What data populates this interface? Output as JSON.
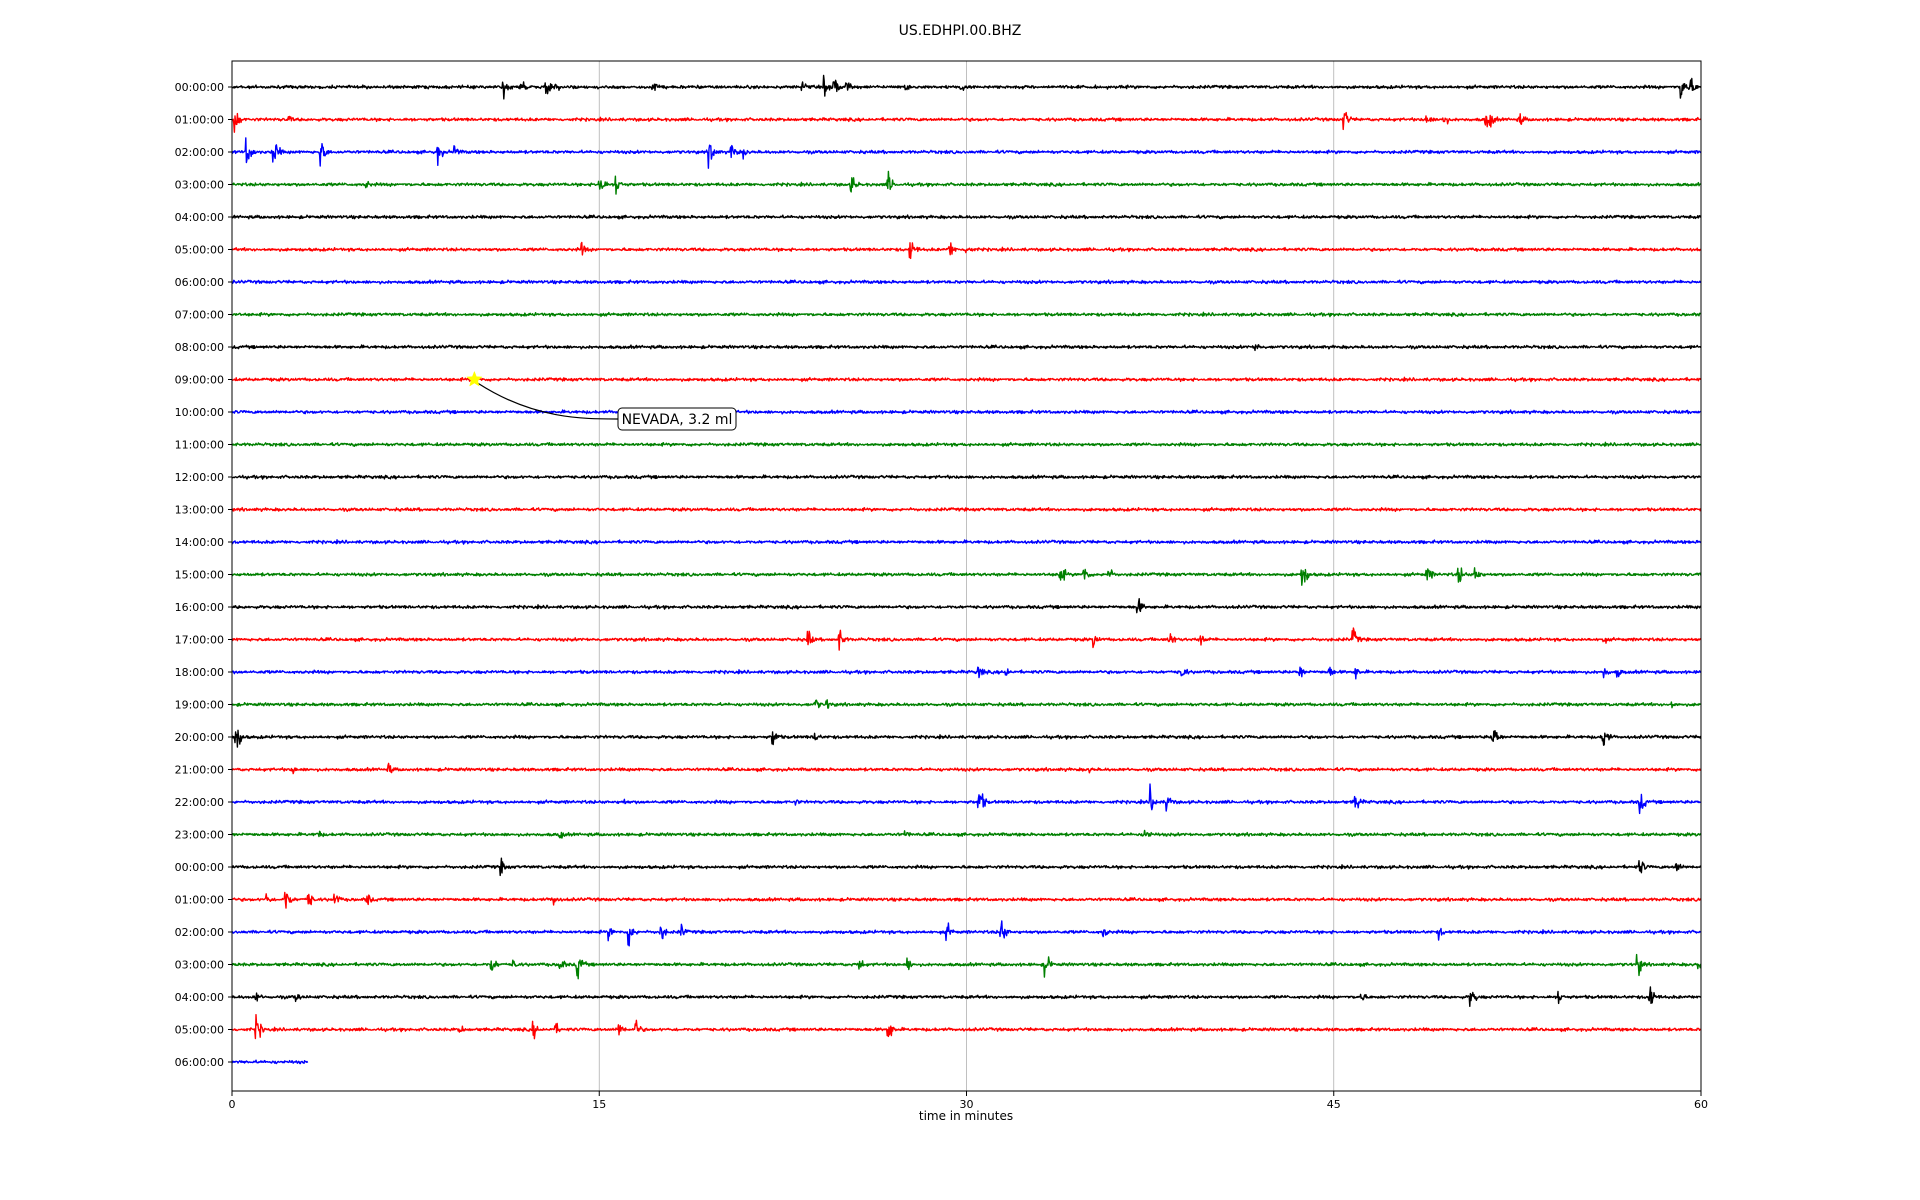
{
  "chart_data": {
    "type": "line",
    "title": "US.EDHPI.00.BHZ",
    "xlabel": "time in minutes",
    "xlim": [
      0,
      60
    ],
    "xticks": [
      0,
      15,
      30,
      45,
      60
    ],
    "grid": "vertical",
    "colors": [
      "#000000",
      "#ff0000",
      "#0000ff",
      "#008000"
    ],
    "noise_amplitude": 0.07,
    "rows": [
      {
        "label": "00:00:00",
        "end": 60,
        "events": [
          [
            11.1,
            0.55
          ],
          [
            11.8,
            0.6
          ],
          [
            12.8,
            0.5
          ],
          [
            13.2,
            0.35
          ],
          [
            17.2,
            0.35
          ],
          [
            23.3,
            0.3
          ],
          [
            24.2,
            0.45
          ],
          [
            24.6,
            0.55
          ],
          [
            25.1,
            0.4
          ],
          [
            27.5,
            0.3
          ],
          [
            29.8,
            0.25
          ],
          [
            59.2,
            0.9
          ],
          [
            59.6,
            0.45
          ]
        ]
      },
      {
        "label": "01:00:00",
        "end": 60,
        "events": [
          [
            0.1,
            0.75
          ],
          [
            2.3,
            0.25
          ],
          [
            45.4,
            0.65
          ],
          [
            48.8,
            0.4
          ],
          [
            49.5,
            0.35
          ],
          [
            51.2,
            0.5
          ],
          [
            51.4,
            0.45
          ],
          [
            52.6,
            0.4
          ]
        ]
      },
      {
        "label": "02:00:00",
        "end": 60,
        "events": [
          [
            0.6,
            0.75
          ],
          [
            1.7,
            0.8
          ],
          [
            3.6,
            0.8
          ],
          [
            8.4,
            0.55
          ],
          [
            9.1,
            0.35
          ],
          [
            19.5,
            0.75
          ],
          [
            20.4,
            0.55
          ],
          [
            20.9,
            0.3
          ]
        ]
      },
      {
        "label": "03:00:00",
        "end": 60,
        "events": [
          [
            15.0,
            0.75
          ],
          [
            15.7,
            0.6
          ],
          [
            25.3,
            0.55
          ],
          [
            26.8,
            0.6
          ],
          [
            5.5,
            0.25
          ]
        ]
      },
      {
        "label": "04:00:00",
        "end": 60,
        "events": []
      },
      {
        "label": "05:00:00",
        "end": 60,
        "events": [
          [
            14.3,
            0.35
          ],
          [
            27.7,
            0.7
          ],
          [
            29.3,
            0.55
          ],
          [
            30.0,
            0.4
          ]
        ]
      },
      {
        "label": "06:00:00",
        "end": 60,
        "events": []
      },
      {
        "label": "07:00:00",
        "end": 60,
        "events": []
      },
      {
        "label": "08:00:00",
        "end": 60,
        "events": [
          [
            41.8,
            0.35
          ]
        ]
      },
      {
        "label": "09:00:00",
        "end": 60,
        "events": []
      },
      {
        "label": "10:00:00",
        "end": 60,
        "events": []
      },
      {
        "label": "11:00:00",
        "end": 60,
        "events": []
      },
      {
        "label": "12:00:00",
        "end": 60,
        "events": []
      },
      {
        "label": "13:00:00",
        "end": 60,
        "events": []
      },
      {
        "label": "14:00:00",
        "end": 60,
        "events": []
      },
      {
        "label": "15:00:00",
        "end": 60,
        "events": [
          [
            33.8,
            0.7
          ],
          [
            34.8,
            0.5
          ],
          [
            35.8,
            0.4
          ],
          [
            43.7,
            0.85
          ],
          [
            48.8,
            0.55
          ],
          [
            50.1,
            0.55
          ],
          [
            50.8,
            0.5
          ]
        ]
      },
      {
        "label": "16:00:00",
        "end": 60,
        "events": [
          [
            37.0,
            0.5
          ]
        ]
      },
      {
        "label": "17:00:00",
        "end": 60,
        "events": [
          [
            23.5,
            0.55
          ],
          [
            24.8,
            0.6
          ],
          [
            35.2,
            0.4
          ],
          [
            38.3,
            0.5
          ],
          [
            39.6,
            0.35
          ],
          [
            45.8,
            0.55
          ],
          [
            56.0,
            0.25
          ]
        ]
      },
      {
        "label": "18:00:00",
        "end": 60,
        "events": [
          [
            30.5,
            0.4
          ],
          [
            31.6,
            0.35
          ],
          [
            38.8,
            0.4
          ],
          [
            43.6,
            0.45
          ],
          [
            44.8,
            0.4
          ],
          [
            45.9,
            0.35
          ],
          [
            56.0,
            0.4
          ],
          [
            56.6,
            0.3
          ]
        ]
      },
      {
        "label": "19:00:00",
        "end": 60,
        "events": [
          [
            23.8,
            0.4
          ],
          [
            24.3,
            0.3
          ],
          [
            58.8,
            0.25
          ]
        ]
      },
      {
        "label": "20:00:00",
        "end": 60,
        "events": [
          [
            0.15,
            0.9
          ],
          [
            22.1,
            0.55
          ],
          [
            23.8,
            0.35
          ],
          [
            51.5,
            0.8
          ],
          [
            56.0,
            0.75
          ]
        ]
      },
      {
        "label": "21:00:00",
        "end": 60,
        "events": [
          [
            2.5,
            0.25
          ],
          [
            6.4,
            0.35
          ],
          [
            35.0,
            0.2
          ]
        ]
      },
      {
        "label": "22:00:00",
        "end": 60,
        "events": [
          [
            30.5,
            0.85
          ],
          [
            37.5,
            0.75
          ],
          [
            38.2,
            0.5
          ],
          [
            45.9,
            0.55
          ],
          [
            57.5,
            0.65
          ],
          [
            16.0,
            0.2
          ],
          [
            23.0,
            0.2
          ]
        ]
      },
      {
        "label": "23:00:00",
        "end": 60,
        "events": [
          [
            3.5,
            0.3
          ],
          [
            13.4,
            0.3
          ],
          [
            27.5,
            0.25
          ],
          [
            37.3,
            0.45
          ]
        ]
      },
      {
        "label": "00:00:00",
        "end": 60,
        "events": [
          [
            11.0,
            0.4
          ],
          [
            57.5,
            0.5
          ],
          [
            59.0,
            0.4
          ]
        ]
      },
      {
        "label": "01:00:00",
        "end": 60,
        "events": [
          [
            1.4,
            0.35
          ],
          [
            2.2,
            0.65
          ],
          [
            3.1,
            0.55
          ],
          [
            4.2,
            0.4
          ],
          [
            5.5,
            0.4
          ],
          [
            13.1,
            0.45
          ]
        ]
      },
      {
        "label": "02:00:00",
        "end": 60,
        "events": [
          [
            15.4,
            0.35
          ],
          [
            16.2,
            0.75
          ],
          [
            17.5,
            0.55
          ],
          [
            18.3,
            0.5
          ],
          [
            29.2,
            0.45
          ],
          [
            31.4,
            0.8
          ],
          [
            35.6,
            0.35
          ],
          [
            49.3,
            0.35
          ]
        ]
      },
      {
        "label": "03:00:00",
        "end": 60,
        "events": [
          [
            10.6,
            0.5
          ],
          [
            11.5,
            0.3
          ],
          [
            13.4,
            0.4
          ],
          [
            14.1,
            0.75
          ],
          [
            25.6,
            0.45
          ],
          [
            27.6,
            0.4
          ],
          [
            33.2,
            0.7
          ],
          [
            57.4,
            0.65
          ],
          [
            59.9,
            0.35
          ]
        ]
      },
      {
        "label": "04:00:00",
        "end": 60,
        "events": [
          [
            1.0,
            0.3
          ],
          [
            2.6,
            0.3
          ],
          [
            46.1,
            0.35
          ],
          [
            50.6,
            0.55
          ],
          [
            54.2,
            0.4
          ],
          [
            57.9,
            0.75
          ]
        ]
      },
      {
        "label": "05:00:00",
        "end": 60,
        "events": [
          [
            1.0,
            0.7
          ],
          [
            9.3,
            0.3
          ],
          [
            12.3,
            0.45
          ],
          [
            13.2,
            0.35
          ],
          [
            15.8,
            0.45
          ],
          [
            16.5,
            0.5
          ],
          [
            26.8,
            0.65
          ]
        ]
      },
      {
        "label": "06:00:00",
        "end": 3.1,
        "events": []
      }
    ],
    "annotation": {
      "text": "NEVADA, 3.2 ml",
      "row": 9,
      "minute": 9.9,
      "marker_color": "#ffff00"
    }
  }
}
